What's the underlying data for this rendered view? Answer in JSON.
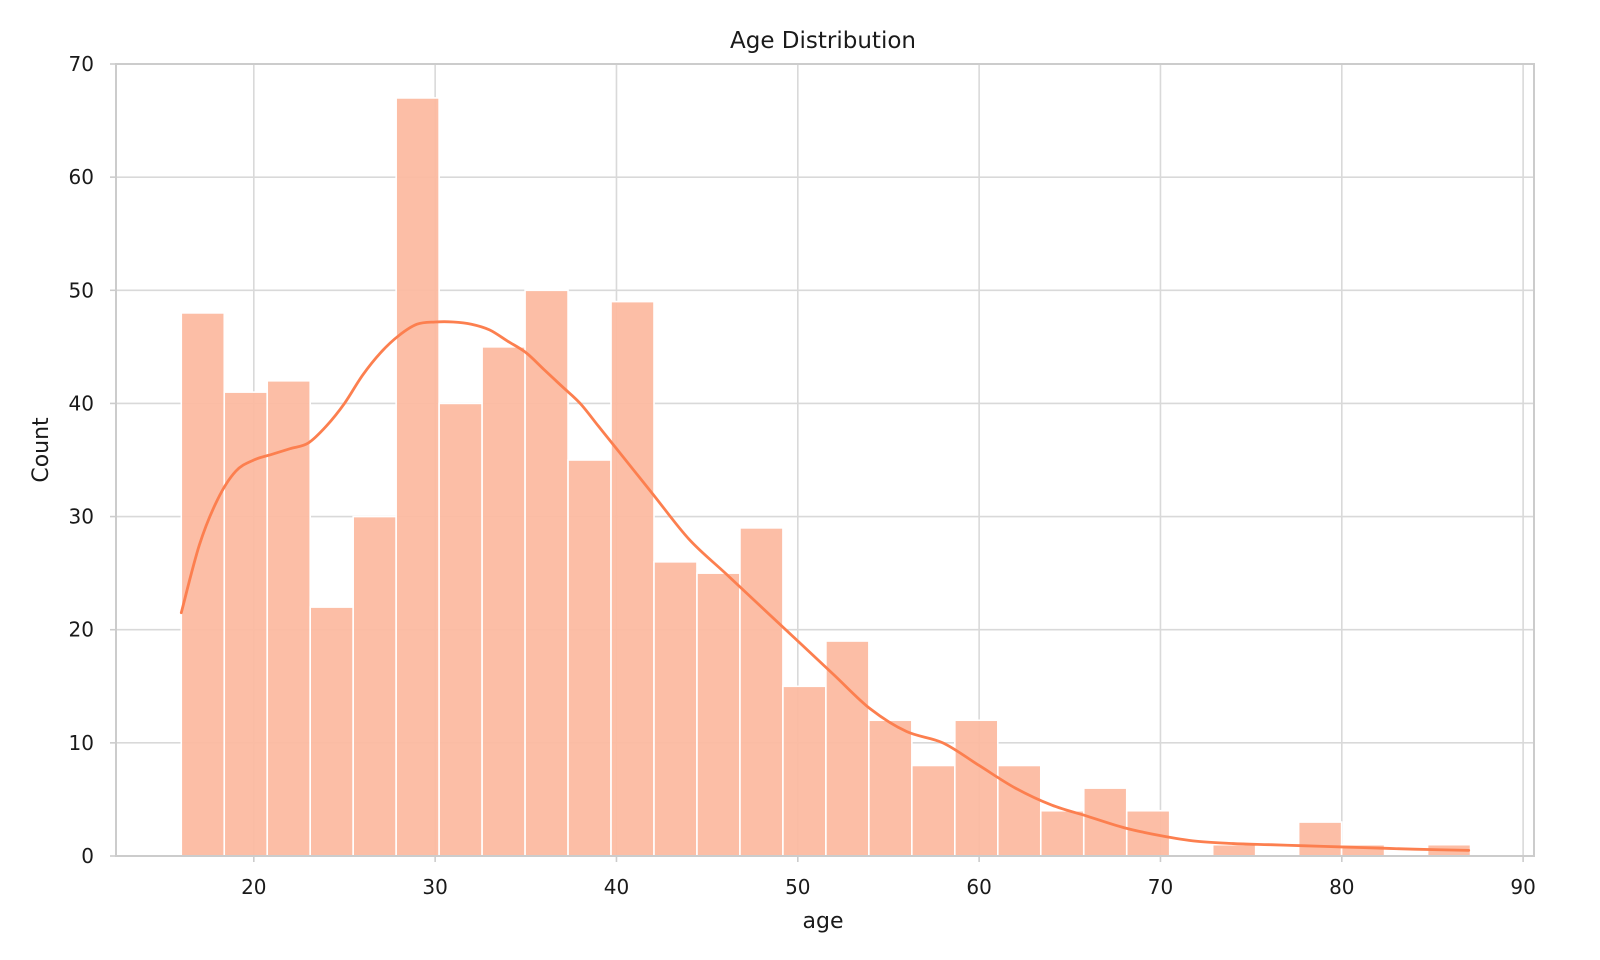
{
  "chart_data": {
    "type": "bar",
    "title": "Age Distribution",
    "xlabel": "age",
    "ylabel": "Count",
    "xlim": [
      12.4,
      90.6
    ],
    "ylim": [
      0,
      70
    ],
    "xticks": [
      20,
      30,
      40,
      50,
      60,
      70,
      80,
      90
    ],
    "yticks": [
      0,
      10,
      20,
      30,
      40,
      50,
      60,
      70
    ],
    "grid": true,
    "colors": {
      "bar": "#fcbba1",
      "kde": "#fc7f4f",
      "grid": "#d9d9d9",
      "spine": "#cccccc",
      "bar_edge": "#ffffff"
    },
    "bins": {
      "start": 16,
      "width": 2.37,
      "counts": [
        48,
        41,
        42,
        22,
        30,
        67,
        40,
        45,
        50,
        35,
        49,
        26,
        25,
        29,
        15,
        19,
        12,
        8,
        12,
        8,
        4,
        6,
        4,
        0,
        1,
        0,
        3,
        1,
        0,
        1
      ]
    },
    "kde": {
      "x": [
        16,
        17,
        18,
        19,
        20,
        21,
        22,
        23,
        24,
        25,
        26,
        27,
        28,
        29,
        30,
        31,
        32,
        33,
        34,
        35,
        36,
        37,
        38,
        39,
        40,
        42,
        44,
        46,
        48,
        50,
        52,
        54,
        56,
        58,
        60,
        62,
        64,
        66,
        68,
        70,
        72,
        74,
        76,
        78,
        80,
        82,
        84,
        87
      ],
      "y": [
        21.5,
        27.5,
        31.5,
        34,
        35,
        35.5,
        36,
        36.5,
        38,
        40,
        42.5,
        44.5,
        46,
        47,
        47.2,
        47.2,
        47,
        46.5,
        45.5,
        44.5,
        43,
        41.5,
        40,
        38,
        36,
        32,
        28,
        25,
        22,
        19,
        16,
        13,
        11,
        10,
        8,
        6,
        4.5,
        3.5,
        2.5,
        1.8,
        1.3,
        1.1,
        1.0,
        0.9,
        0.8,
        0.7,
        0.6,
        0.5
      ]
    }
  }
}
